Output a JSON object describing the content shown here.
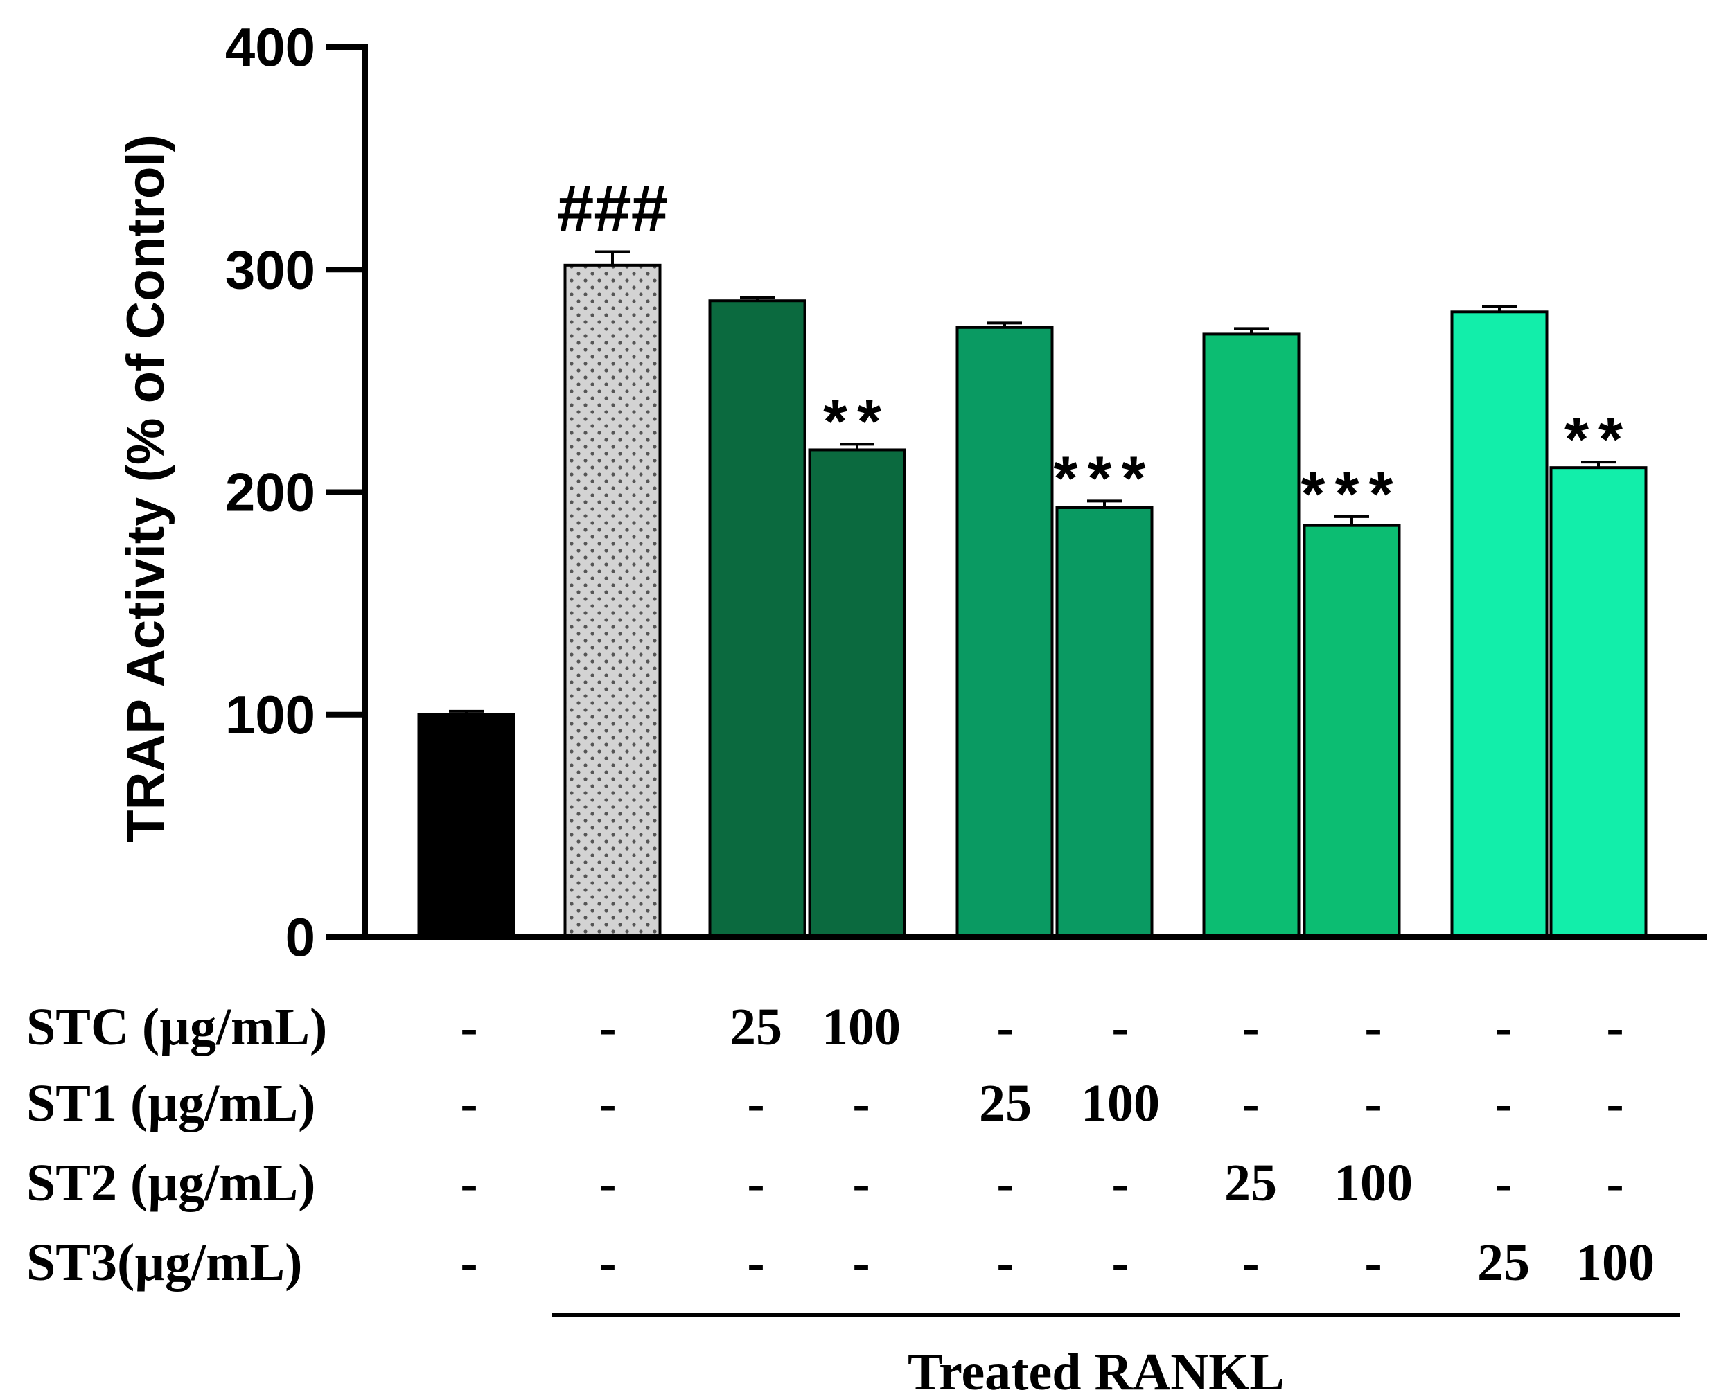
{
  "chart_data": {
    "type": "bar",
    "ylabel": "TRAP Activity (% of Control)",
    "ylim": [
      0,
      400
    ],
    "yticks": [
      "0",
      "100",
      "200",
      "300",
      "400"
    ],
    "bars": [
      {
        "value": 100,
        "error": 1.5,
        "color": "#000000",
        "pattern": false,
        "annotation": ""
      },
      {
        "value": 302,
        "error": 6,
        "color": "#d3d3d3",
        "pattern": true,
        "annotation": "###"
      },
      {
        "value": 286,
        "error": 1.5,
        "color": "#0b6a3f",
        "pattern": false,
        "annotation": ""
      },
      {
        "value": 219,
        "error": 2.5,
        "color": "#0b6a3f",
        "pattern": false,
        "annotation": "**"
      },
      {
        "value": 274,
        "error": 2,
        "color": "#0a9a62",
        "pattern": false,
        "annotation": ""
      },
      {
        "value": 193,
        "error": 3,
        "color": "#0a9a62",
        "pattern": false,
        "annotation": "***"
      },
      {
        "value": 271,
        "error": 2.5,
        "color": "#0cbd72",
        "pattern": false,
        "annotation": ""
      },
      {
        "value": 185,
        "error": 4,
        "color": "#0cbd72",
        "pattern": false,
        "annotation": "***"
      },
      {
        "value": 281,
        "error": 2.5,
        "color": "#12eeaa",
        "pattern": false,
        "annotation": ""
      },
      {
        "value": 211,
        "error": 2.5,
        "color": "#12eeaa",
        "pattern": false,
        "annotation": "**"
      }
    ],
    "treatment_rows": [
      {
        "label": "STC (µg/mL)",
        "values": [
          "-",
          "-",
          "25",
          "100",
          "-",
          "-",
          "-",
          "-",
          "-",
          "-"
        ]
      },
      {
        "label": "ST1 (µg/mL)",
        "values": [
          "-",
          "-",
          "-",
          "-",
          "25",
          "100",
          "-",
          "-",
          "-",
          "-"
        ]
      },
      {
        "label": "ST2 (µg/mL)",
        "values": [
          "-",
          "-",
          "-",
          "-",
          "-",
          "-",
          "25",
          "100",
          "-",
          "-"
        ]
      },
      {
        "label": "ST3(µg/mL)",
        "values": [
          "-",
          "-",
          "-",
          "-",
          "-",
          "-",
          "-",
          "-",
          "25",
          "100"
        ]
      }
    ],
    "group_label": "Treated RANKL"
  }
}
